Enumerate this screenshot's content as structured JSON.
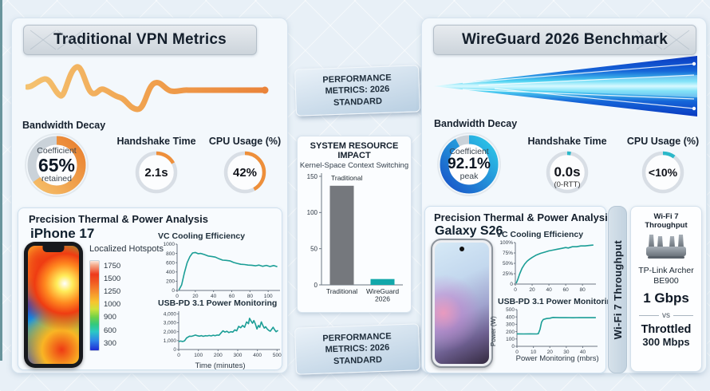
{
  "accent_colors": {
    "orange": "#ee8f3a",
    "teal": "#1b9e96",
    "blue_donut_start": "#1853c8",
    "blue_donut_end": "#2ec9e8",
    "gauge_teal": "#2bb8c9"
  },
  "left_panel": {
    "title": "Traditional VPN Metrics",
    "bandwidth": {
      "label": "Bandwidth Decay",
      "center_top": "Coefficient",
      "center_value": "65%",
      "center_bottom": "retained",
      "fraction": 0.65,
      "color_start": "#f6c06a",
      "color_end": "#e97f2e"
    },
    "handshake": {
      "label": "Handshake Time",
      "value": "2.1s",
      "fraction": 0.17,
      "color": "#ee8f3a"
    },
    "cpu": {
      "label": "CPU Usage (%)",
      "value": "42%",
      "fraction": 0.42,
      "color": "#ee8f3a"
    },
    "thermal": {
      "title": "Precision Thermal & Power Analysis",
      "device": "iPhone 17",
      "colorbar_label": "Localized Hotspots",
      "colorbar_ticks": [
        "1750",
        "1500",
        "1250",
        "1000",
        "900",
        "600",
        "300"
      ]
    }
  },
  "middle": {
    "badge_top": "PERFORMANCE METRICS: 2026 STANDARD",
    "badge_bottom": "PERFORMANCE METRICS: 2026 STANDARD"
  },
  "right_panel": {
    "title": "WireGuard 2026 Benchmark",
    "bandwidth": {
      "label": "Bandwidth Decay",
      "center_top": "Coefficient",
      "center_value": "92.1%",
      "center_bottom": "peak",
      "fraction": 0.921
    },
    "handshake": {
      "label": "Handshake Time",
      "value": "0.0s",
      "sub": "(0-RTT)",
      "fraction": 0.03,
      "color": "#2bb8c9"
    },
    "cpu": {
      "label": "CPU Usage (%)",
      "value": "<10%",
      "fraction": 0.1,
      "color": "#2bb8c9"
    },
    "thermal": {
      "title": "Precision Thermal & Power Analysis",
      "device": "Galaxy S26"
    },
    "wifi_strip_label": "Wi-Fi 7 Throughput",
    "wifi_card": {
      "heading": "Wi-Fi 7 Throughput",
      "model": "TP-Link Archer BE900",
      "speed": "1 Gbps",
      "vs": "vs",
      "throttled_label": "Throttled",
      "throttled_value": "300 Mbps"
    }
  },
  "chart_data": {
    "vc_left": {
      "type": "line",
      "title": "VC Cooling Efficiency",
      "color": "#1b9e96",
      "x_range": [
        0,
        113
      ],
      "y_range": [
        0,
        1000
      ],
      "x_ticks": [
        0,
        20,
        40,
        60,
        80,
        100
      ],
      "y_ticks": [
        0,
        200,
        400,
        600,
        800,
        1000
      ],
      "points": [
        [
          2,
          10
        ],
        [
          5,
          120
        ],
        [
          8,
          380
        ],
        [
          11,
          600
        ],
        [
          14,
          730
        ],
        [
          17,
          810
        ],
        [
          20,
          820
        ],
        [
          23,
          795
        ],
        [
          26,
          800
        ],
        [
          30,
          775
        ],
        [
          34,
          745
        ],
        [
          38,
          735
        ],
        [
          42,
          720
        ],
        [
          46,
          685
        ],
        [
          50,
          655
        ],
        [
          54,
          650
        ],
        [
          58,
          640
        ],
        [
          62,
          605
        ],
        [
          66,
          585
        ],
        [
          70,
          565
        ],
        [
          74,
          560
        ],
        [
          78,
          548
        ],
        [
          82,
          545
        ],
        [
          86,
          532
        ],
        [
          90,
          548
        ],
        [
          94,
          522
        ],
        [
          98,
          542
        ],
        [
          102,
          518
        ],
        [
          106,
          538
        ],
        [
          110,
          512
        ]
      ]
    },
    "usb_left": {
      "type": "line",
      "title": "USB-PD 3.1 Power Monitoring",
      "xlabel": "Time (minutes)",
      "color": "#1b9e96",
      "x_range": [
        0,
        515
      ],
      "y_range": [
        0,
        4300
      ],
      "x_ticks": [
        0,
        100,
        200,
        300,
        400,
        500
      ],
      "y_ticks": [
        0,
        1000,
        2000,
        3000,
        4000
      ],
      "y_tick_labels": [
        "0",
        "1,000",
        "2,000",
        "3,000",
        "4,000"
      ],
      "points": [
        [
          0,
          900
        ],
        [
          10,
          950
        ],
        [
          20,
          900
        ],
        [
          30,
          980
        ],
        [
          40,
          1300
        ],
        [
          55,
          1500
        ],
        [
          65,
          1480
        ],
        [
          75,
          1550
        ],
        [
          85,
          1620
        ],
        [
          95,
          1550
        ],
        [
          105,
          1500
        ],
        [
          115,
          1560
        ],
        [
          125,
          1480
        ],
        [
          135,
          1550
        ],
        [
          145,
          1520
        ],
        [
          155,
          1580
        ],
        [
          165,
          1520
        ],
        [
          175,
          1600
        ],
        [
          185,
          1550
        ],
        [
          195,
          1620
        ],
        [
          205,
          1600
        ],
        [
          215,
          1850
        ],
        [
          225,
          2100
        ],
        [
          235,
          1950
        ],
        [
          245,
          2050
        ],
        [
          255,
          1900
        ],
        [
          265,
          2000
        ],
        [
          275,
          1950
        ],
        [
          285,
          2200
        ],
        [
          295,
          2100
        ],
        [
          305,
          2600
        ],
        [
          315,
          2450
        ],
        [
          325,
          2700
        ],
        [
          335,
          2500
        ],
        [
          345,
          3100
        ],
        [
          355,
          2900
        ],
        [
          360,
          3500
        ],
        [
          368,
          3200
        ],
        [
          375,
          2950
        ],
        [
          382,
          3250
        ],
        [
          390,
          2850
        ],
        [
          398,
          2300
        ],
        [
          405,
          2700
        ],
        [
          412,
          2500
        ],
        [
          420,
          3100
        ],
        [
          428,
          2700
        ],
        [
          435,
          2400
        ],
        [
          442,
          2550
        ],
        [
          450,
          2300
        ],
        [
          458,
          2150
        ],
        [
          465,
          2050
        ],
        [
          472,
          2250
        ],
        [
          480,
          2500
        ],
        [
          488,
          2200
        ],
        [
          495,
          2000
        ],
        [
          505,
          2150
        ]
      ]
    },
    "resource_bar": {
      "type": "bar",
      "title": "SYSTEM RESOURCE IMPACT",
      "subtitle": "Kernel-Space Context Switching",
      "annotation": "Traditional",
      "categories": [
        [
          "Traditional"
        ],
        [
          "WireGuard",
          "2026"
        ]
      ],
      "values": [
        137,
        8
      ],
      "colors": [
        "#75787d",
        "#12a7aa"
      ],
      "y_ticks": [
        0,
        50,
        100,
        150
      ]
    },
    "vc_right": {
      "type": "line",
      "title": "VC Cooling Efficiency",
      "color": "#1b9e96",
      "x_range": [
        0,
        96
      ],
      "y_range": [
        0,
        100
      ],
      "x_ticks": [
        0,
        20,
        40,
        60,
        80
      ],
      "y_ticks": [
        0,
        25,
        50,
        75,
        100
      ],
      "y_tick_labels": [
        "0",
        "25%",
        "50%",
        "75%",
        "100%"
      ],
      "points": [
        [
          1,
          2
        ],
        [
          3,
          12
        ],
        [
          5,
          24
        ],
        [
          8,
          38
        ],
        [
          11,
          48
        ],
        [
          14,
          55
        ],
        [
          17,
          60
        ],
        [
          20,
          64
        ],
        [
          25,
          70
        ],
        [
          30,
          74
        ],
        [
          35,
          77
        ],
        [
          40,
          80
        ],
        [
          45,
          82
        ],
        [
          50,
          84
        ],
        [
          55,
          86
        ],
        [
          60,
          88
        ],
        [
          63,
          87
        ],
        [
          68,
          90
        ],
        [
          73,
          90
        ],
        [
          78,
          92
        ],
        [
          83,
          92
        ],
        [
          88,
          93
        ],
        [
          93,
          94
        ]
      ]
    },
    "usb_right": {
      "type": "line",
      "title": "USB-PD 3.1 Power Monitoring",
      "xlabel": "Power Monitoring (mbrs)",
      "ylabel": "Power (W)",
      "color": "#1b9e96",
      "x_range": [
        0,
        49
      ],
      "y_range": [
        0,
        500
      ],
      "x_ticks": [
        0,
        10,
        20,
        30,
        40
      ],
      "y_ticks": [
        0,
        100,
        200,
        300,
        400,
        500
      ],
      "points": [
        [
          0,
          170
        ],
        [
          4,
          168
        ],
        [
          8,
          170
        ],
        [
          12,
          169
        ],
        [
          13,
          172
        ],
        [
          14,
          230
        ],
        [
          15,
          330
        ],
        [
          16,
          365
        ],
        [
          18,
          378
        ],
        [
          20,
          383
        ],
        [
          22,
          393
        ],
        [
          26,
          390
        ],
        [
          30,
          391
        ],
        [
          34,
          389
        ],
        [
          38,
          391
        ],
        [
          42,
          390
        ],
        [
          46,
          391
        ],
        [
          48,
          390
        ]
      ]
    }
  }
}
